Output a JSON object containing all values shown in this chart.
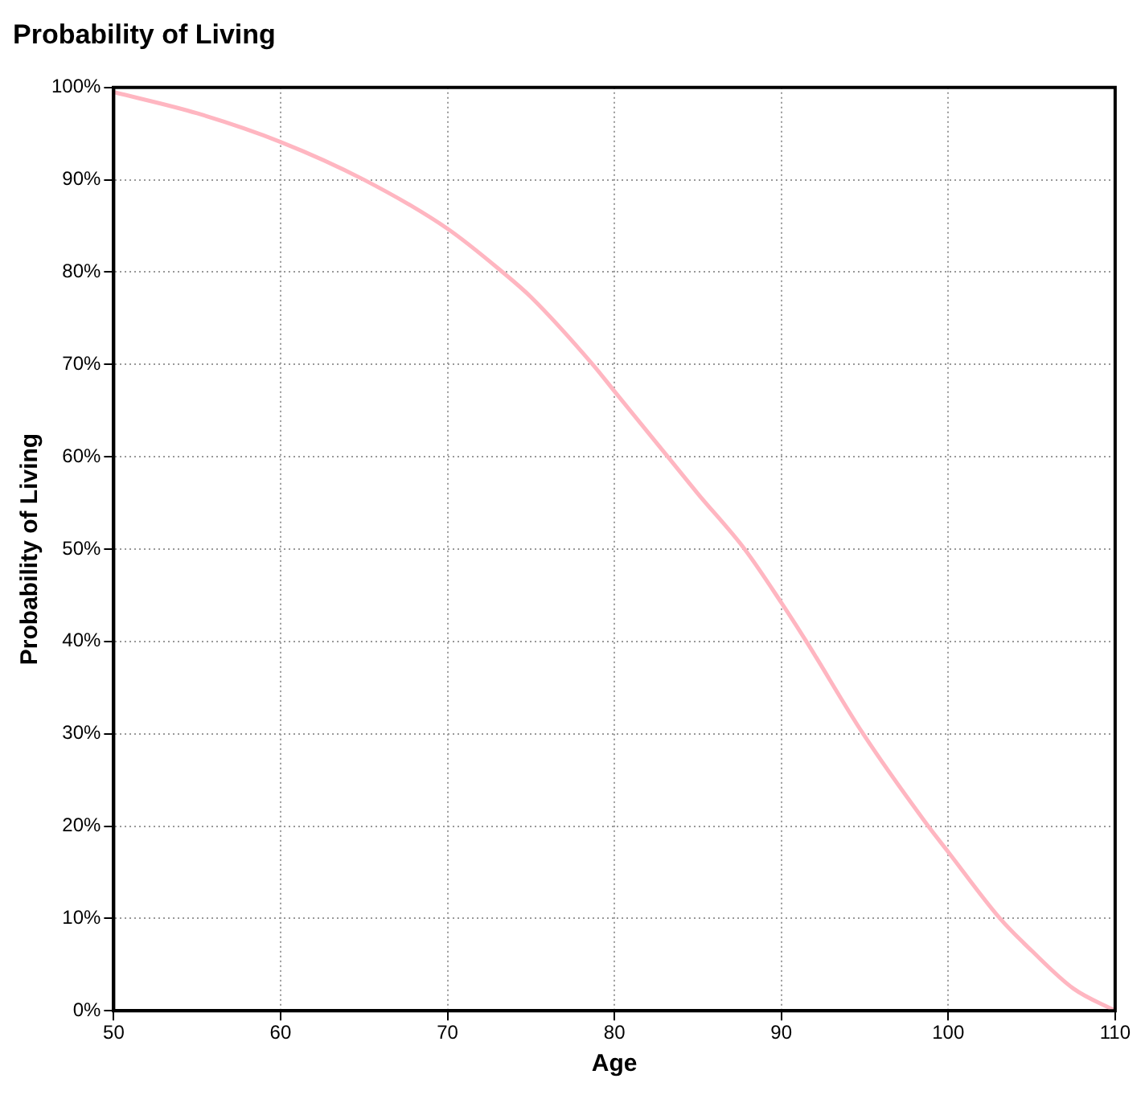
{
  "chart_data": {
    "type": "line",
    "title": "Probability of Living",
    "xlabel": "Age",
    "ylabel": "Probability of Living",
    "x": [
      50,
      55,
      60,
      65,
      70,
      73.3,
      75,
      78.7,
      80,
      83.2,
      85,
      87.8,
      90,
      91.5,
      94.9,
      98.8,
      100,
      103.1,
      105,
      107.5,
      110
    ],
    "series": [
      {
        "color": "#ffb6c1",
        "values": [
          99.5,
          97.2,
          94.1,
          90,
          84.7,
          80,
          77.3,
          70,
          67.1,
          60,
          56,
          50,
          44.2,
          40,
          30,
          20,
          17.2,
          10,
          6.5,
          2.4,
          0
        ]
      }
    ],
    "xlim": [
      50,
      110
    ],
    "xticks": [
      50,
      60,
      70,
      80,
      90,
      100,
      110
    ],
    "ylim": [
      0,
      100
    ],
    "yticks": [
      {
        "value": 0,
        "label": "0%"
      },
      {
        "value": 10,
        "label": "10%"
      },
      {
        "value": 20,
        "label": "20%"
      },
      {
        "value": 30,
        "label": "30%"
      },
      {
        "value": 40,
        "label": "40%"
      },
      {
        "value": 50,
        "label": "50%"
      },
      {
        "value": 60,
        "label": "60%"
      },
      {
        "value": 70,
        "label": "70%"
      },
      {
        "value": 80,
        "label": "80%"
      },
      {
        "value": 90,
        "label": "90%"
      },
      {
        "value": 100,
        "label": "100%"
      }
    ],
    "grid": true,
    "legend": false,
    "marker": "none",
    "line_style": "solid"
  }
}
